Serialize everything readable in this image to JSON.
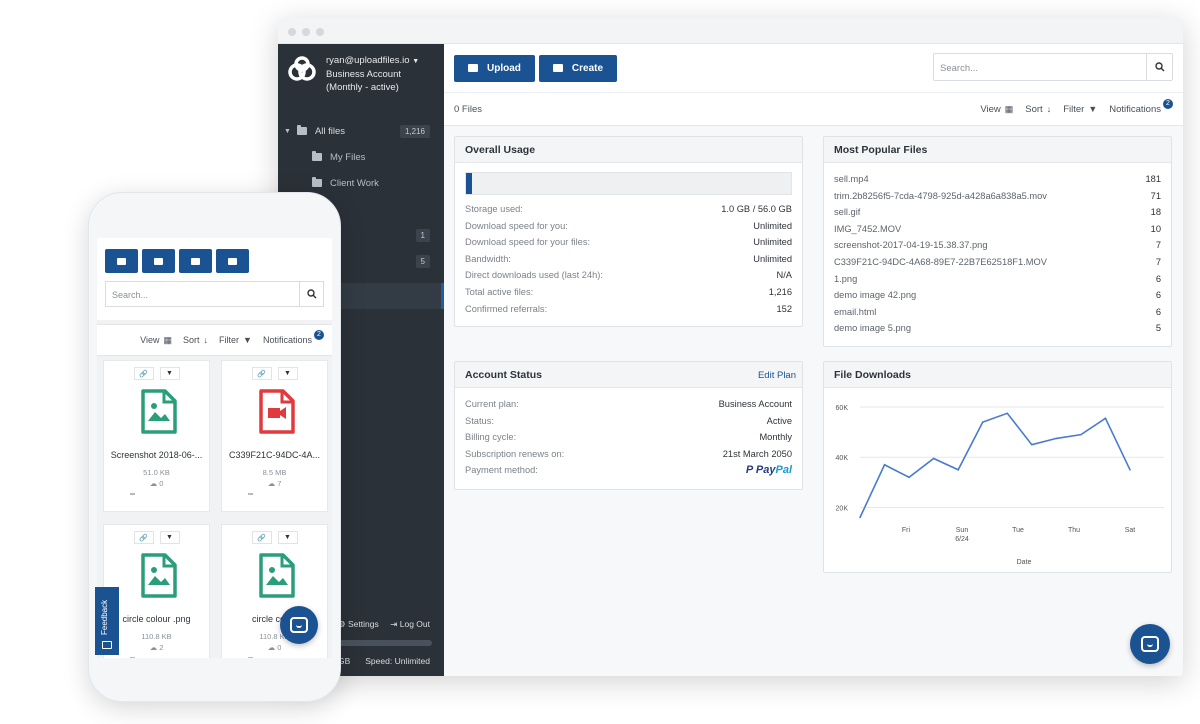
{
  "desktop": {
    "account": {
      "email": "ryan@uploadfiles.io",
      "line2": "Business Account",
      "line3": "(Monthly - active)"
    },
    "sidebar": {
      "items": [
        {
          "label": "All files",
          "count": "1,216"
        },
        {
          "label": "My Files",
          "count": ""
        },
        {
          "label": "Client Work",
          "count": ""
        },
        {
          "label": "",
          "count": "1"
        },
        {
          "label": "",
          "count": "5"
        }
      ],
      "settings_label": "Settings",
      "logout_label": "Log Out",
      "storage_text": "GB",
      "speed_text": "Speed: Unlimited"
    },
    "toolbar": {
      "upload_label": "Upload",
      "create_label": "Create",
      "search_placeholder": "Search..."
    },
    "subbar": {
      "files_count": "0 Files",
      "view_label": "View",
      "sort_label": "Sort",
      "filter_label": "Filter",
      "notifications_label": "Notifications",
      "notifications_badge": "2"
    },
    "overall_usage": {
      "title": "Overall Usage",
      "usage_fraction": 0.018,
      "rows": [
        {
          "k": "Storage used:",
          "v": "1.0 GB / 56.0 GB"
        },
        {
          "k": "Download speed for you:",
          "v": "Unlimited"
        },
        {
          "k": "Download speed for your files:",
          "v": "Unlimited"
        },
        {
          "k": "Bandwidth:",
          "v": "Unlimited"
        },
        {
          "k": "Direct downloads used (last 24h):",
          "v": "N/A"
        },
        {
          "k": "Total active files:",
          "v": "1,216"
        },
        {
          "k": "Confirmed referrals:",
          "v": "152"
        }
      ]
    },
    "account_status": {
      "title": "Account Status",
      "edit_label": "Edit Plan",
      "rows": [
        {
          "k": "Current plan:",
          "v": "Business Account"
        },
        {
          "k": "Status:",
          "v": "Active"
        },
        {
          "k": "Billing cycle:",
          "v": "Monthly"
        },
        {
          "k": "Subscription renews on:",
          "v": "21st March 2050"
        },
        {
          "k": "Payment method:",
          "v": ""
        }
      ],
      "paypal_a": "Pay",
      "paypal_b": "Pal"
    },
    "popular_files": {
      "title": "Most Popular Files",
      "rows": [
        {
          "k": "sell.mp4",
          "v": "181"
        },
        {
          "k": "trim.2b8256f5-7cda-4798-925d-a428a6a838a5.mov",
          "v": "71"
        },
        {
          "k": "sell.gif",
          "v": "18"
        },
        {
          "k": "IMG_7452.MOV",
          "v": "10"
        },
        {
          "k": "screenshot-2017-04-19-15.38.37.png",
          "v": "7"
        },
        {
          "k": "C339F21C-94DC-4A68-89E7-22B7E62518F1.MOV",
          "v": "7"
        },
        {
          "k": "1.png",
          "v": "6"
        },
        {
          "k": "demo image 42.png",
          "v": "6"
        },
        {
          "k": "email.html",
          "v": "6"
        },
        {
          "k": "demo image 5.png",
          "v": "5"
        }
      ]
    },
    "file_downloads": {
      "title": "File Downloads"
    }
  },
  "chart_data": {
    "type": "line",
    "title": "File Downloads",
    "xlabel": "Date",
    "ylabel": "",
    "x_tick_labels": [
      "Fri",
      "Sun\n6/24",
      "Tue",
      "Thu",
      "Sat"
    ],
    "y_tick_labels": [
      "20K",
      "40K",
      "60K"
    ],
    "ylim": [
      15000,
      62000
    ],
    "grid": true,
    "series": [
      {
        "values": [
          16000,
          37000,
          32000,
          39500,
          35000,
          54000,
          57500,
          45000,
          47500,
          49000,
          55500,
          35000
        ]
      }
    ],
    "color": "#4a7bd0"
  },
  "mobile": {
    "search_placeholder": "Search...",
    "view_label": "View",
    "sort_label": "Sort",
    "filter_label": "Filter",
    "notifications_label": "Notifications",
    "notifications_badge": "2",
    "feedback_label": "Feedback",
    "cards": [
      {
        "name": "Screenshot 2018-06-...",
        "size": "51.0 KB",
        "downloads": "0",
        "icon": "image-file-icon",
        "color": "#2a9d7a"
      },
      {
        "name": "C339F21C-94DC-4A...",
        "size": "8.5 MB",
        "downloads": "7",
        "icon": "video-file-icon",
        "color": "#e0393e"
      },
      {
        "name": "circle colour .png",
        "size": "110.8 KB",
        "downloads": "2",
        "icon": "image-file-icon",
        "color": "#2a9d7a"
      },
      {
        "name": "circle colou",
        "size": "110.8 KB",
        "downloads": "0",
        "icon": "image-file-icon",
        "color": "#2a9d7a"
      }
    ]
  },
  "colors": {
    "brand": "#1a5292",
    "sidebar": "#2b3138"
  }
}
